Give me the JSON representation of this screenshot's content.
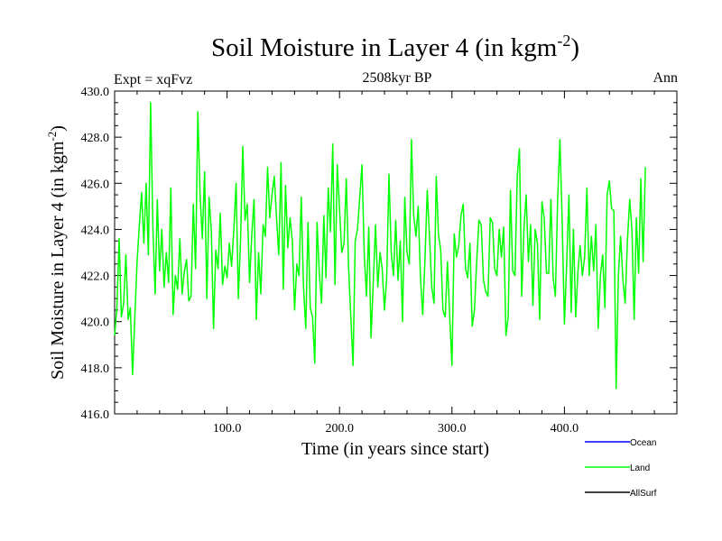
{
  "chart_data": {
    "type": "line",
    "title": "Soil Moisture in Layer 4 (in kgm",
    "title_sup": "-2",
    "title_close": ")",
    "subtitle": "2508kyr BP",
    "left_label": "Expt = xqFvz",
    "right_label": "Ann",
    "xlabel": "Time (in years since start)",
    "ylabel": "Soil Moisture in Layer 4 (in kgm",
    "ylabel_sup": "-2",
    "ylabel_close": ")",
    "xlim": [
      0,
      500
    ],
    "ylim": [
      416,
      430
    ],
    "x_ticks": [
      100,
      200,
      300,
      400
    ],
    "x_tick_labels": [
      "100.0",
      "200.0",
      "300.0",
      "400.0"
    ],
    "y_ticks": [
      416,
      418,
      420,
      422,
      424,
      426,
      428,
      430
    ],
    "y_tick_labels": [
      "416.0",
      "418.0",
      "420.0",
      "422.0",
      "424.0",
      "426.0",
      "428.0",
      "430.0"
    ],
    "legend": [
      {
        "name": "Ocean",
        "color": "#0000ff"
      },
      {
        "name": "Land",
        "color": "#00ff00"
      },
      {
        "name": "AllSurf",
        "color": "#000000"
      }
    ],
    "series": [
      {
        "name": "Land",
        "color": "#00ff00",
        "x_start": 0,
        "x_step": 2,
        "values": [
          419.4,
          420.6,
          423.6,
          420.2,
          420.8,
          422.9,
          420.1,
          420.6,
          417.7,
          420.2,
          422.6,
          424.2,
          425.6,
          423.4,
          426.0,
          422.9,
          429.5,
          424.1,
          421.2,
          425.3,
          422.2,
          424.0,
          421.5,
          423.0,
          421.7,
          425.8,
          420.3,
          422.0,
          421.4,
          423.6,
          421.2,
          422.2,
          422.7,
          420.9,
          421.1,
          425.1,
          422.3,
          429.1,
          425.5,
          423.6,
          426.5,
          421.0,
          425.4,
          423.9,
          419.7,
          423.1,
          422.3,
          424.7,
          421.6,
          422.4,
          421.9,
          423.4,
          422.4,
          424.0,
          426.0,
          421.0,
          423.6,
          427.6,
          424.4,
          425.1,
          421.7,
          423.8,
          425.3,
          420.1,
          423.0,
          421.2,
          424.2,
          423.7,
          426.7,
          424.5,
          425.5,
          426.3,
          424.5,
          422.9,
          426.9,
          421.4,
          425.9,
          423.2,
          424.5,
          423.5,
          420.5,
          422.5,
          422.0,
          425.4,
          421.5,
          419.7,
          424.3,
          420.6,
          420.2,
          418.2,
          424.3,
          422.1,
          420.8,
          424.6,
          421.9,
          425.8,
          423.9,
          427.7,
          421.6,
          426.8,
          424.9,
          423.0,
          423.4,
          426.2,
          422.4,
          420.2,
          418.1,
          423.5,
          424.0,
          425.4,
          426.8,
          422.9,
          421.1,
          424.1,
          419.3,
          421.7,
          424.2,
          421.5,
          423.0,
          422.3,
          420.5,
          421.9,
          426.4,
          423.0,
          422.0,
          424.4,
          421.8,
          423.5,
          420.0,
          425.4,
          423.0,
          422.5,
          427.9,
          424.6,
          423.7,
          425.0,
          421.9,
          420.3,
          422.7,
          425.7,
          423.7,
          421.5,
          420.8,
          426.3,
          423.8,
          423.1,
          420.5,
          420.2,
          422.6,
          420.2,
          418.1,
          423.8,
          422.8,
          423.3,
          424.6,
          425.1,
          422.3,
          421.9,
          423.4,
          419.8,
          420.5,
          422.6,
          424.4,
          424.2,
          421.8,
          421.3,
          421.1,
          424.5,
          424.3,
          422.3,
          422.0,
          424.0,
          422.8,
          424.1,
          419.4,
          420.2,
          425.7,
          422.2,
          422.0,
          426.3,
          427.5,
          421.1,
          424.0,
          425.5,
          422.6,
          424.2,
          420.7,
          424.0,
          423.4,
          420.1,
          425.2,
          424.5,
          422.1,
          422.1,
          425.3,
          421.9,
          421.1,
          425.3,
          427.9,
          424.4,
          419.9,
          422.5,
          425.5,
          420.4,
          424.0,
          420.2,
          422.2,
          423.3,
          422.0,
          422.8,
          425.8,
          422.0,
          423.7,
          422.2,
          424.2,
          419.7,
          422.0,
          422.9,
          420.6,
          425.5,
          426.1,
          424.9,
          424.8,
          417.1,
          422.0,
          423.7,
          421.8,
          420.8,
          423.5,
          425.3,
          424.0,
          420.1,
          424.5,
          422.1,
          426.2,
          422.6,
          426.7
        ]
      }
    ]
  }
}
